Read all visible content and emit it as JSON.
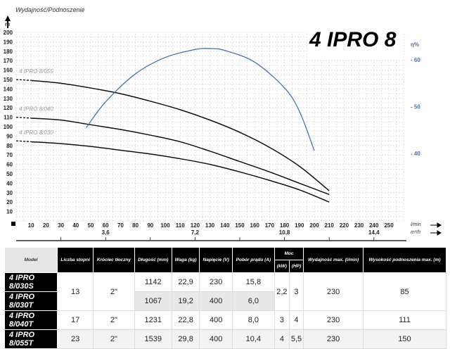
{
  "chart_data": {
    "type": "line",
    "title": "4 IPRO 8",
    "ylabel": "Wydajność/Podnoszenie",
    "yunit": "m",
    "y2unit": "η%",
    "xunit": "l/min",
    "x2unit": "m³/h",
    "xlim": [
      0,
      260
    ],
    "ylim": [
      0,
      200
    ],
    "y2lim": [
      20,
      80
    ],
    "xticks": [
      10,
      20,
      30,
      40,
      50,
      60,
      70,
      80,
      90,
      100,
      110,
      120,
      130,
      140,
      150,
      160,
      170,
      180,
      190,
      200,
      210,
      220,
      230,
      240,
      250
    ],
    "yticks": [
      10,
      20,
      30,
      40,
      50,
      60,
      70,
      80,
      90,
      100,
      110,
      120,
      130,
      140,
      150,
      160,
      170,
      180,
      190,
      200
    ],
    "y2ticks": [
      40,
      50,
      60
    ],
    "x2ticks": [
      {
        "at": 60,
        "label": "3,6"
      },
      {
        "at": 120,
        "label": "7,2"
      },
      {
        "at": 180,
        "label": "10,8"
      },
      {
        "at": 240,
        "label": "14,4"
      }
    ],
    "grid": true,
    "series": [
      {
        "name": "4 IPRO 8/055",
        "axis": "left",
        "color": "#111111",
        "x": [
          10,
          30,
          50,
          70,
          90,
          110,
          130,
          150,
          170,
          190,
          210
        ],
        "y": [
          149,
          146,
          141,
          135,
          127,
          118,
          107,
          94,
          78,
          58,
          32
        ],
        "dashed_start": [
          0,
          150
        ]
      },
      {
        "name": "4 IPRO 8/040",
        "axis": "left",
        "color": "#111111",
        "x": [
          10,
          30,
          50,
          70,
          90,
          110,
          130,
          150,
          170,
          190,
          210
        ],
        "y": [
          109,
          107,
          102,
          97,
          91,
          84,
          74,
          63,
          52,
          40,
          28
        ],
        "dashed_start": [
          0,
          110
        ]
      },
      {
        "name": "4 IPRO 8/030",
        "axis": "left",
        "color": "#111111",
        "x": [
          10,
          30,
          50,
          70,
          90,
          110,
          130,
          150,
          170,
          190,
          210
        ],
        "y": [
          84,
          82,
          79,
          75,
          71,
          66,
          60,
          52,
          43,
          33,
          20
        ],
        "dashed_start": [
          0,
          85
        ]
      },
      {
        "axis": "right",
        "color": "#4a72a8",
        "x": [
          47,
          60,
          80,
          100,
          120,
          130,
          140,
          160,
          180,
          190,
          200
        ],
        "y": [
          45.5,
          51,
          57,
          60.5,
          62.2,
          62.4,
          62,
          59.5,
          54,
          49,
          40.6
        ]
      }
    ]
  },
  "table": {
    "headers": {
      "model": "Model",
      "stages": "Liczba stopni",
      "outlet": "Króciec tłoczny",
      "length": "Długość (mm)",
      "weight": "Waga (kg)",
      "voltage": "Napięcie (V)",
      "current": "Pobór prądu (A)",
      "power": "Moc",
      "kw": "(kW)",
      "hp": "(HP)",
      "qmax": "Wydajność max. (l/min)",
      "hmax": "Wysokość podnoszenia max. (m)"
    },
    "rows": [
      {
        "model": "4 IPRO 8/030S",
        "stages": "13",
        "outlet": "2\"",
        "length": "1142",
        "weight": "22,9",
        "voltage": "230",
        "current": "15,8",
        "kw": "2,2",
        "hp": "3",
        "qmax": "230",
        "hmax": "85"
      },
      {
        "model": "4 IPRO 8/030T",
        "length": "1067",
        "weight": "19,2",
        "voltage": "400",
        "current": "6,0"
      },
      {
        "model": "4 IPRO 8/040T",
        "stages": "17",
        "outlet": "2\"",
        "length": "1231",
        "weight": "22,8",
        "voltage": "400",
        "current": "8,0",
        "kw": "3",
        "hp": "4",
        "qmax": "230",
        "hmax": "111"
      },
      {
        "model": "4 IPRO 8/055T",
        "stages": "23",
        "outlet": "2\"",
        "length": "1539",
        "weight": "29,8",
        "voltage": "400",
        "current": "10,4",
        "kw": "4",
        "hp": "5,5",
        "qmax": "230",
        "hmax": "150"
      }
    ]
  }
}
